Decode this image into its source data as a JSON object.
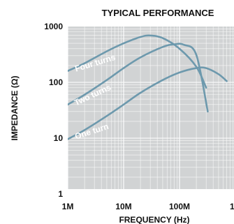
{
  "chart_data": {
    "type": "line",
    "title": "TYPICAL PERFORMANCE",
    "xlabel": "FREQUENCY (Hz)",
    "ylabel": "IMPEDANCE (Ω)",
    "x_scale": "log",
    "y_scale": "log",
    "xlim": [
      1000000,
      1000000000
    ],
    "ylim": [
      1,
      1000
    ],
    "x_ticks": [
      {
        "value": 1000000,
        "label": "1M"
      },
      {
        "value": 10000000,
        "label": "10M"
      },
      {
        "value": 100000000,
        "label": "100M"
      },
      {
        "value": 1000000000,
        "label": "1G"
      }
    ],
    "y_ticks": [
      {
        "value": 1,
        "label": "1"
      },
      {
        "value": 10,
        "label": "10"
      },
      {
        "value": 100,
        "label": "100"
      },
      {
        "value": 1000,
        "label": "1000"
      }
    ],
    "grid": true,
    "colors": {
      "plot_background": "#d1d3d4",
      "grid": "#ffffff",
      "series": "#6d99ad"
    },
    "series": [
      {
        "name": "Four turns",
        "points": [
          [
            1000000,
            160
          ],
          [
            2000000,
            220
          ],
          [
            5000000,
            360
          ],
          [
            10000000,
            500
          ],
          [
            20000000,
            650
          ],
          [
            30000000,
            690
          ],
          [
            50000000,
            620
          ],
          [
            100000000,
            400
          ],
          [
            200000000,
            190
          ],
          [
            300000000,
            80
          ]
        ]
      },
      {
        "name": "Two turns",
        "points": [
          [
            1000000,
            40
          ],
          [
            2000000,
            60
          ],
          [
            5000000,
            110
          ],
          [
            10000000,
            180
          ],
          [
            20000000,
            280
          ],
          [
            50000000,
            430
          ],
          [
            80000000,
            480
          ],
          [
            120000000,
            470
          ],
          [
            200000000,
            310
          ],
          [
            320000000,
            30
          ]
        ]
      },
      {
        "name": "One turn",
        "points": [
          [
            1000000,
            9.6
          ],
          [
            2000000,
            14
          ],
          [
            5000000,
            25
          ],
          [
            10000000,
            40
          ],
          [
            20000000,
            65
          ],
          [
            50000000,
            110
          ],
          [
            100000000,
            150
          ],
          [
            200000000,
            180
          ],
          [
            300000000,
            180
          ],
          [
            500000000,
            140
          ],
          [
            700000000,
            105
          ]
        ]
      }
    ]
  }
}
